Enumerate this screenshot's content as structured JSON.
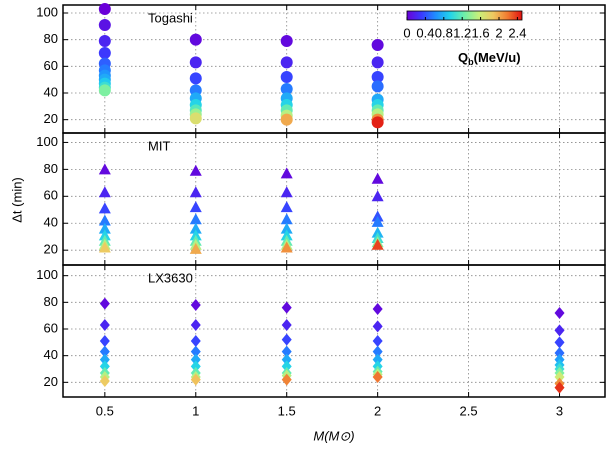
{
  "chart_data": {
    "type": "scatter",
    "xlabel": "M(M⊙)",
    "ylabel": "Δt (min)",
    "xlim": [
      0.27,
      3.25
    ],
    "xticks": [
      0.5,
      1,
      1.5,
      2,
      2.5,
      3
    ],
    "grid": true,
    "colormap": [
      "#6a00d8",
      "#3a3aff",
      "#1f8fff",
      "#22d3ea",
      "#6ff0a8",
      "#c8f07a",
      "#f0c860",
      "#f07a30",
      "#e01010"
    ],
    "colorbar": {
      "lim": [
        0,
        2.5
      ],
      "ticks": [
        0,
        0.4,
        0.8,
        1.2,
        1.6,
        2,
        2.4
      ],
      "label_main": "Q",
      "label_sub": "b",
      "label_unit": "(MeV/u)"
    },
    "panels": [
      {
        "title": "Togashi",
        "marker": "circle",
        "ylim": [
          10,
          106
        ],
        "yticks": [
          20,
          40,
          60,
          80,
          100
        ],
        "x": [
          0.5,
          0.5,
          0.5,
          0.5,
          0.5,
          0.5,
          0.5,
          0.5,
          0.5,
          0.5,
          0.5,
          1,
          1,
          1,
          1,
          1,
          1,
          1,
          1,
          1,
          1.5,
          1.5,
          1.5,
          1.5,
          1.5,
          1.5,
          1.5,
          1.5,
          1.5,
          2,
          2,
          2,
          2,
          2,
          2,
          2,
          2,
          2,
          2
        ],
        "values": [
          103,
          91,
          79,
          70,
          62,
          57,
          53,
          50,
          47,
          44,
          42,
          80,
          63,
          51,
          42,
          36,
          31,
          27,
          24,
          21,
          79,
          63,
          52,
          43,
          36,
          31,
          27,
          23,
          20,
          76,
          63,
          52,
          45,
          35,
          31,
          27,
          24,
          20,
          18
        ],
        "q": [
          0,
          0.1,
          0.2,
          0.3,
          0.45,
          0.55,
          0.65,
          0.75,
          0.9,
          1.05,
          1.3,
          0.05,
          0.2,
          0.35,
          0.55,
          0.75,
          0.95,
          1.15,
          1.4,
          1.7,
          0.05,
          0.2,
          0.35,
          0.55,
          0.75,
          0.95,
          1.2,
          1.5,
          2.0,
          0.05,
          0.2,
          0.35,
          0.5,
          0.75,
          0.95,
          1.2,
          1.5,
          2.1,
          2.45
        ]
      },
      {
        "title": "MIT",
        "marker": "triangle",
        "ylim": [
          9,
          107
        ],
        "yticks": [
          20,
          40,
          60,
          80,
          100
        ],
        "x": [
          0.5,
          0.5,
          0.5,
          0.5,
          0.5,
          0.5,
          0.5,
          0.5,
          0.5,
          1,
          1,
          1,
          1,
          1,
          1,
          1,
          1,
          1,
          1.5,
          1.5,
          1.5,
          1.5,
          1.5,
          1.5,
          1.5,
          1.5,
          1.5,
          2,
          2,
          2,
          2,
          2,
          2,
          2,
          2
        ],
        "values": [
          80,
          63,
          51,
          42,
          36,
          31,
          27,
          24,
          22,
          79,
          63,
          52,
          43,
          36,
          31,
          27,
          24,
          21,
          77,
          63,
          52,
          43,
          36,
          31,
          27,
          24,
          22,
          73,
          60,
          45,
          41,
          33,
          29,
          26,
          24
        ],
        "q": [
          0.05,
          0.2,
          0.35,
          0.55,
          0.75,
          0.95,
          1.2,
          1.5,
          1.85,
          0.05,
          0.2,
          0.35,
          0.55,
          0.75,
          0.95,
          1.2,
          1.5,
          2.0,
          0.05,
          0.2,
          0.35,
          0.55,
          0.75,
          0.95,
          1.2,
          1.5,
          2.1,
          0.05,
          0.2,
          0.4,
          0.55,
          0.8,
          1.05,
          1.35,
          2.35
        ]
      },
      {
        "title": "LX3630",
        "marker": "diamond",
        "ylim": [
          9,
          108
        ],
        "yticks": [
          20,
          40,
          60,
          80,
          100
        ],
        "x": [
          0.5,
          0.5,
          0.5,
          0.5,
          0.5,
          0.5,
          0.5,
          0.5,
          0.5,
          1,
          1,
          1,
          1,
          1,
          1,
          1,
          1,
          1,
          1.5,
          1.5,
          1.5,
          1.5,
          1.5,
          1.5,
          1.5,
          1.5,
          1.5,
          2,
          2,
          2,
          2,
          2,
          2,
          2,
          2,
          2,
          3,
          3,
          3,
          3,
          3,
          3,
          3,
          3,
          3,
          3,
          3
        ],
        "values": [
          79,
          63,
          51,
          43,
          37,
          32,
          27,
          24,
          21,
          78,
          63,
          51,
          43,
          37,
          32,
          27,
          24,
          22,
          76,
          63,
          52,
          43,
          37,
          32,
          27,
          25,
          22,
          75,
          62,
          51,
          43,
          37,
          32,
          28,
          26,
          24,
          72,
          59,
          50,
          42,
          37,
          33,
          30,
          27,
          24,
          19,
          16
        ],
        "q": [
          0.05,
          0.2,
          0.35,
          0.55,
          0.75,
          0.95,
          1.2,
          1.5,
          1.85,
          0.05,
          0.2,
          0.35,
          0.55,
          0.75,
          0.95,
          1.2,
          1.5,
          1.9,
          0.05,
          0.2,
          0.35,
          0.55,
          0.75,
          0.95,
          1.2,
          1.5,
          2.15,
          0.05,
          0.2,
          0.35,
          0.55,
          0.75,
          0.95,
          1.2,
          1.5,
          2.2,
          0.05,
          0.2,
          0.35,
          0.5,
          0.7,
          0.85,
          1.05,
          1.3,
          1.6,
          2.1,
          2.4
        ]
      }
    ]
  }
}
